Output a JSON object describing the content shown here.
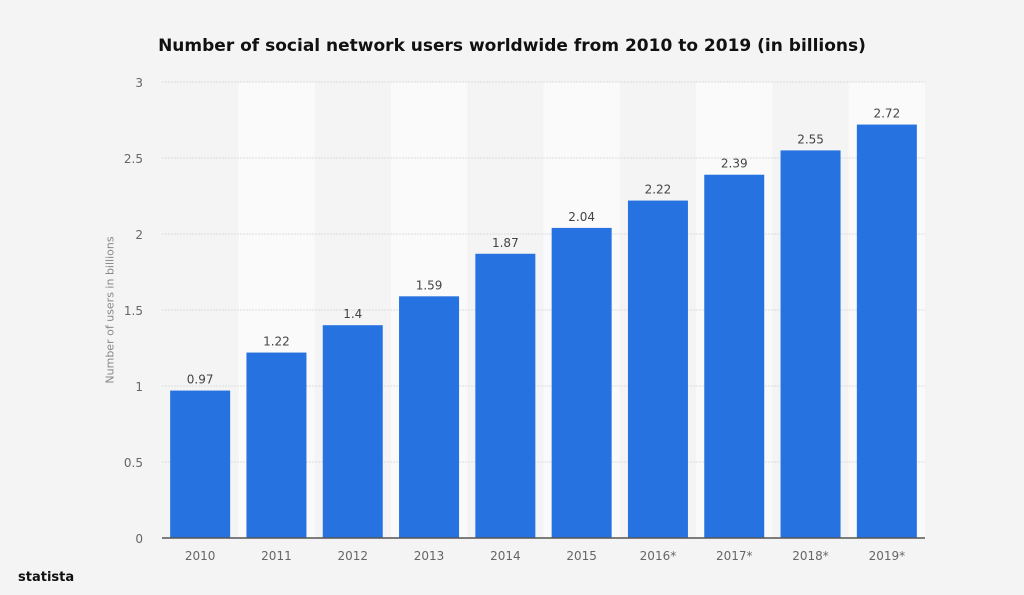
{
  "chart_data": {
    "type": "bar",
    "title": "Number of social network users worldwide from 2010 to 2019 (in billions)",
    "xlabel": "",
    "ylabel": "Number of users in billions",
    "categories": [
      "2010",
      "2011",
      "2012",
      "2013",
      "2014",
      "2015",
      "2016*",
      "2017*",
      "2018*",
      "2019*"
    ],
    "values": [
      0.97,
      1.22,
      1.4,
      1.59,
      1.87,
      2.04,
      2.22,
      2.39,
      2.55,
      2.72
    ],
    "value_labels": [
      "0.97",
      "1.22",
      "1.4",
      "1.59",
      "1.87",
      "2.04",
      "2.22",
      "2.39",
      "2.55",
      "2.72"
    ],
    "ylim": [
      0,
      3
    ],
    "yticks": [
      0,
      0.5,
      1,
      1.5,
      2,
      2.5,
      3
    ],
    "ytick_labels": [
      "0",
      "0.5",
      "1",
      "1.5",
      "2",
      "2.5",
      "3"
    ],
    "grid": true,
    "legend": "none",
    "colors": {
      "bar": "#2672e0",
      "background": "#f4f4f4",
      "band": "#fafafa"
    }
  },
  "footer": {
    "brand": "statista"
  }
}
